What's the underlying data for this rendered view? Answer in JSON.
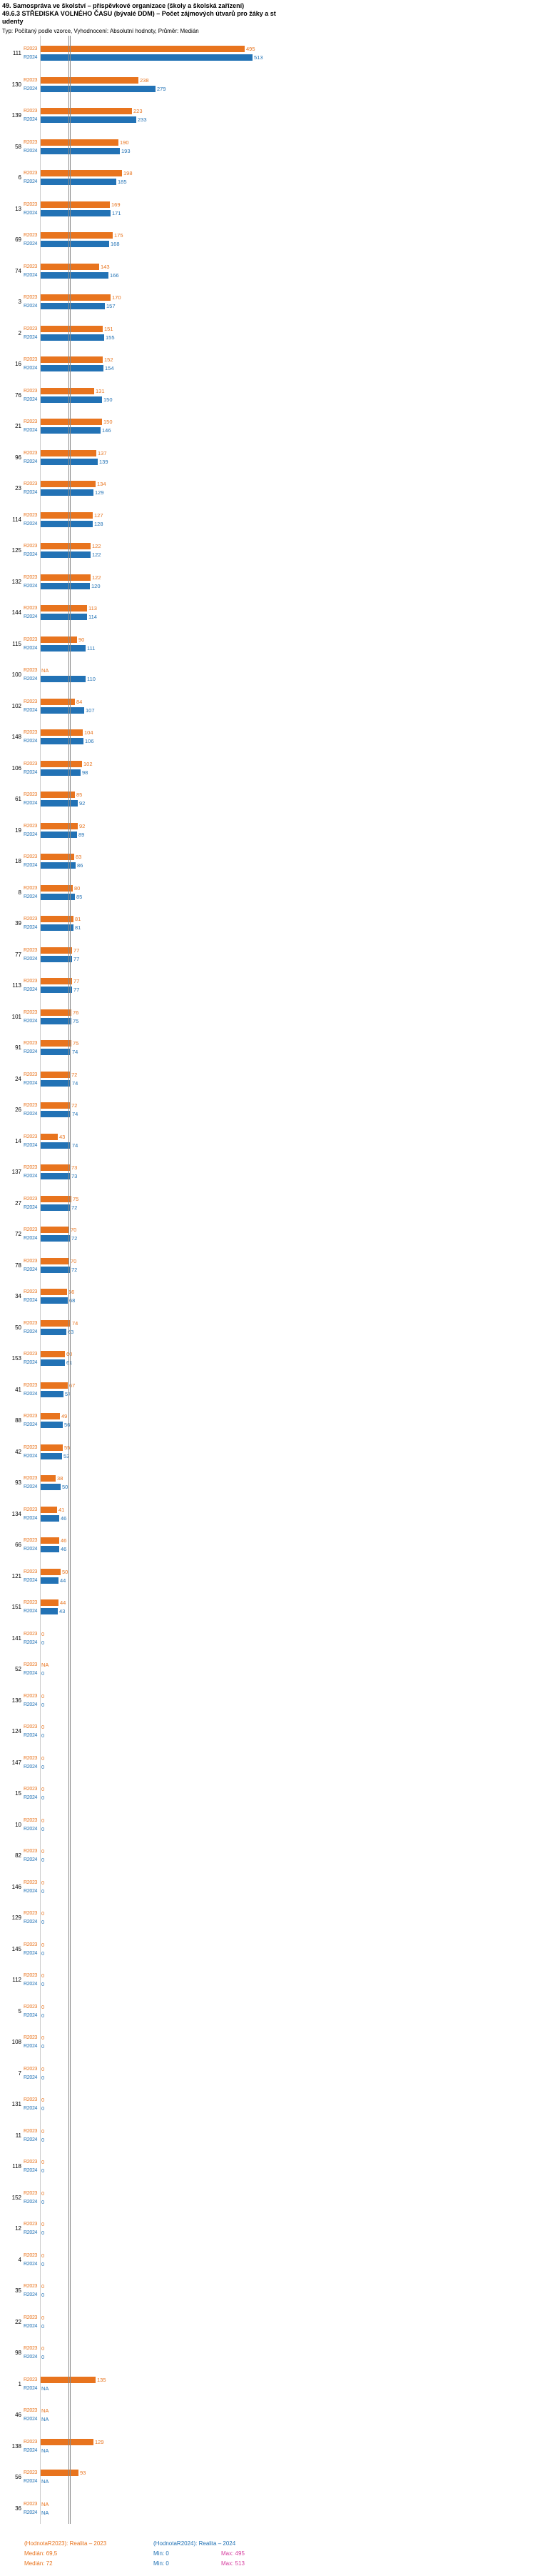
{
  "header": {
    "title_lines": [
      "49. Samospráva ve školství – příspěvkové organizace (školy a školská zařízení)",
      "49.6.3 STŘEDISKA VOLNÉHO ČASU (bývalé DDM) – Počet zájmových útvarů pro žáky a st",
      "udenty"
    ],
    "subtitle": "Typ: Počítaný podle vzorce, Vyhodnocení: Absolutní hodnoty, Průměr: Medián"
  },
  "footer": {
    "legend": [
      {
        "label": "(HodnotaR2023): Realita – 2023",
        "color": "#e8741e"
      },
      {
        "label": "(HodnotaR2024): Realita – 2024",
        "color": "#2272b5"
      }
    ],
    "stats": [
      {
        "median": "Medián: 69,5",
        "min": "Min: 0",
        "max": "Max: 495"
      },
      {
        "median": "Medián: 72",
        "min": "Min: 0",
        "max": "Max: 513"
      }
    ]
  },
  "chart_data": {
    "type": "bar",
    "orientation": "horizontal",
    "title": "49.6.3 STŘEDISKA VOLNÉHO ČASU (bývalé DDM) – Počet zájmových útvarů pro žáky a studenty",
    "xlabel": "",
    "ylabel": "Organizace (ID)",
    "xlim": [
      0,
      540
    ],
    "grid": false,
    "median_lines": [
      69.5,
      72
    ],
    "series": [
      {
        "name": "R2023",
        "label": "Realita – 2023",
        "color": "#e8741e",
        "median": 69.5,
        "min": 0,
        "max": 495
      },
      {
        "name": "R2024",
        "label": "Realita – 2024",
        "color": "#2272b5",
        "median": 72,
        "min": 0,
        "max": 513
      }
    ],
    "rows": [
      {
        "id": "111",
        "r2023": 495,
        "r2024": 513
      },
      {
        "id": "130",
        "r2023": 238,
        "r2024": 279
      },
      {
        "id": "139",
        "r2023": 223,
        "r2024": 233
      },
      {
        "id": "58",
        "r2023": 190,
        "r2024": 193
      },
      {
        "id": "6",
        "r2023": 198,
        "r2024": 185
      },
      {
        "id": "13",
        "r2023": 169,
        "r2024": 171
      },
      {
        "id": "69",
        "r2023": 175,
        "r2024": 168
      },
      {
        "id": "74",
        "r2023": 143,
        "r2024": 166
      },
      {
        "id": "3",
        "r2023": 170,
        "r2024": 157
      },
      {
        "id": "2",
        "r2023": 151,
        "r2024": 155
      },
      {
        "id": "16",
        "r2023": 152,
        "r2024": 154
      },
      {
        "id": "76",
        "r2023": 131,
        "r2024": 150
      },
      {
        "id": "21",
        "r2023": 150,
        "r2024": 146
      },
      {
        "id": "96",
        "r2023": 137,
        "r2024": 139
      },
      {
        "id": "23",
        "r2023": 134,
        "r2024": 129
      },
      {
        "id": "114",
        "r2023": 127,
        "r2024": 128
      },
      {
        "id": "125",
        "r2023": 122,
        "r2024": 122
      },
      {
        "id": "132",
        "r2023": 122,
        "r2024": 120
      },
      {
        "id": "144",
        "r2023": 113,
        "r2024": 114
      },
      {
        "id": "115",
        "r2023": 90,
        "r2024": 111
      },
      {
        "id": "100",
        "r2023": "NA",
        "r2024": 110
      },
      {
        "id": "102",
        "r2023": 84,
        "r2024": 107
      },
      {
        "id": "148",
        "r2023": 104,
        "r2024": 106
      },
      {
        "id": "106",
        "r2023": 102,
        "r2024": 98
      },
      {
        "id": "61",
        "r2023": 85,
        "r2024": 92
      },
      {
        "id": "19",
        "r2023": 92,
        "r2024": 89
      },
      {
        "id": "18",
        "r2023": 83,
        "r2024": 86
      },
      {
        "id": "8",
        "r2023": 80,
        "r2024": 85
      },
      {
        "id": "39",
        "r2023": 81,
        "r2024": 81
      },
      {
        "id": "77",
        "r2023": 77,
        "r2024": 77
      },
      {
        "id": "113",
        "r2023": 77,
        "r2024": 77
      },
      {
        "id": "101",
        "r2023": 76,
        "r2024": 75
      },
      {
        "id": "91",
        "r2023": 75,
        "r2024": 74
      },
      {
        "id": "24",
        "r2023": 72,
        "r2024": 74
      },
      {
        "id": "26",
        "r2023": 72,
        "r2024": 74
      },
      {
        "id": "14",
        "r2023": 43,
        "r2024": 74
      },
      {
        "id": "137",
        "r2023": 73,
        "r2024": 73
      },
      {
        "id": "27",
        "r2023": 75,
        "r2024": 72
      },
      {
        "id": "72",
        "r2023": 70,
        "r2024": 72
      },
      {
        "id": "78",
        "r2023": 70,
        "r2024": 72
      },
      {
        "id": "34",
        "r2023": 66,
        "r2024": 68
      },
      {
        "id": "50",
        "r2023": 74,
        "r2024": 63
      },
      {
        "id": "153",
        "r2023": 60,
        "r2024": 61
      },
      {
        "id": "41",
        "r2023": 67,
        "r2024": 57
      },
      {
        "id": "88",
        "r2023": 49,
        "r2024": 56
      },
      {
        "id": "42",
        "r2023": 55,
        "r2024": 53
      },
      {
        "id": "93",
        "r2023": 38,
        "r2024": 50
      },
      {
        "id": "134",
        "r2023": 41,
        "r2024": 46
      },
      {
        "id": "66",
        "r2023": 46,
        "r2024": 46
      },
      {
        "id": "121",
        "r2023": 50,
        "r2024": 44
      },
      {
        "id": "151",
        "r2023": 44,
        "r2024": 43
      },
      {
        "id": "141",
        "r2023": 0,
        "r2024": 0
      },
      {
        "id": "52",
        "r2023": "NA",
        "r2024": 0
      },
      {
        "id": "136",
        "r2023": 0,
        "r2024": 0
      },
      {
        "id": "124",
        "r2023": 0,
        "r2024": 0
      },
      {
        "id": "147",
        "r2023": 0,
        "r2024": 0
      },
      {
        "id": "15",
        "r2023": 0,
        "r2024": 0
      },
      {
        "id": "10",
        "r2023": 0,
        "r2024": 0
      },
      {
        "id": "82",
        "r2023": 0,
        "r2024": 0
      },
      {
        "id": "146",
        "r2023": 0,
        "r2024": 0
      },
      {
        "id": "129",
        "r2023": 0,
        "r2024": 0
      },
      {
        "id": "145",
        "r2023": 0,
        "r2024": 0
      },
      {
        "id": "112",
        "r2023": 0,
        "r2024": 0
      },
      {
        "id": "5",
        "r2023": 0,
        "r2024": 0
      },
      {
        "id": "108",
        "r2023": 0,
        "r2024": 0
      },
      {
        "id": "7",
        "r2023": 0,
        "r2024": 0
      },
      {
        "id": "131",
        "r2023": 0,
        "r2024": 0
      },
      {
        "id": "11",
        "r2023": 0,
        "r2024": 0
      },
      {
        "id": "118",
        "r2023": 0,
        "r2024": 0
      },
      {
        "id": "152",
        "r2023": 0,
        "r2024": 0
      },
      {
        "id": "12",
        "r2023": 0,
        "r2024": 0
      },
      {
        "id": "4",
        "r2023": 0,
        "r2024": 0
      },
      {
        "id": "35",
        "r2023": 0,
        "r2024": 0
      },
      {
        "id": "22",
        "r2023": 0,
        "r2024": 0
      },
      {
        "id": "98",
        "r2023": 0,
        "r2024": 0
      },
      {
        "id": "1",
        "r2023": 135,
        "r2024": "NA"
      },
      {
        "id": "46",
        "r2023": "NA",
        "r2024": "NA"
      },
      {
        "id": "138",
        "r2023": 129,
        "r2024": "NA"
      },
      {
        "id": "56",
        "r2023": 93,
        "r2024": "NA"
      },
      {
        "id": "36",
        "r2023": "NA",
        "r2024": "NA"
      }
    ]
  }
}
